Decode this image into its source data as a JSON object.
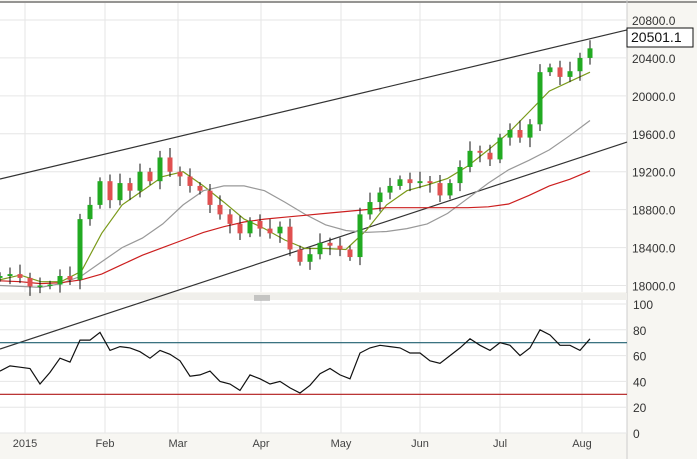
{
  "chart_data": [
    {
      "type": "candlestick",
      "price_axis": {
        "ticks": [
          "18000.0",
          "18400.0",
          "18800.0",
          "19200.0",
          "19600.0",
          "20000.0",
          "20400.0",
          "20800.0"
        ],
        "ylim": [
          17930,
          20960
        ]
      },
      "current_price": "20501.1",
      "closes": [
        18100,
        18120,
        18080,
        17990,
        18000,
        18010,
        18100,
        18060,
        18700,
        18850,
        19100,
        18900,
        19080,
        19000,
        19200,
        19100,
        19350,
        19200,
        19150,
        19050,
        19000,
        18850,
        18750,
        18650,
        18550,
        18680,
        18600,
        18550,
        18620,
        18380,
        18250,
        18330,
        18450,
        18420,
        18380,
        18300,
        18750,
        18880,
        18980,
        19050,
        19120,
        19080,
        19100,
        19080,
        18950,
        19080,
        19250,
        19420,
        19400,
        19330,
        19560,
        19640,
        19560,
        19700,
        20250,
        20300,
        20200,
        20260,
        20400,
        20501.1
      ],
      "moving_averages": [
        {
          "color": "#7a9a1a",
          "values": [
            18060,
            18110,
            18040,
            18040,
            18150,
            18550,
            18850,
            19000,
            19150,
            19200,
            19050,
            18880,
            18700,
            18600,
            18480,
            18390,
            18390,
            18380,
            18580,
            18850,
            19000,
            19060,
            19130,
            19260,
            19430,
            19610,
            19830,
            20050,
            20150,
            20250
          ]
        },
        {
          "color": "#999999",
          "values": [
            18000,
            17990,
            17980,
            18020,
            18100,
            18250,
            18400,
            18500,
            18650,
            18850,
            19000,
            19050,
            19050,
            19000,
            18880,
            18750,
            18640,
            18580,
            18560,
            18570,
            18600,
            18650,
            18760,
            18920,
            19080,
            19220,
            19320,
            19430,
            19580,
            19740
          ]
        },
        {
          "color": "#cc1f1f",
          "values": [
            18050,
            18040,
            18020,
            18030,
            18060,
            18120,
            18220,
            18320,
            18400,
            18480,
            18560,
            18620,
            18670,
            18700,
            18720,
            18740,
            18760,
            18780,
            18800,
            18820,
            18820,
            18820,
            18820,
            18820,
            18830,
            18860,
            18950,
            19050,
            19120,
            19210
          ]
        }
      ],
      "trendlines": [
        {
          "start": 19123,
          "end": 20695
        },
        {
          "start": 17330,
          "end": 19513
        }
      ],
      "bull_color": "#22aa22",
      "bear_color": "#e05050"
    },
    {
      "type": "line",
      "ylim": [
        0,
        100
      ],
      "ticks": [
        "0",
        "20",
        "40",
        "60",
        "80",
        "100"
      ],
      "levels": [
        {
          "value": 70,
          "color": "#1f5f6f"
        },
        {
          "value": 30,
          "color": "#b01818"
        }
      ],
      "values": [
        48,
        52,
        51,
        50,
        38,
        47,
        58,
        55,
        72,
        72,
        78,
        64,
        67,
        66,
        63,
        58,
        64,
        61,
        56,
        44,
        45,
        48,
        40,
        38,
        33,
        45,
        42,
        38,
        40,
        35,
        31,
        37,
        46,
        50,
        45,
        42,
        62,
        66,
        68,
        67,
        66,
        62,
        62,
        56,
        54,
        60,
        66,
        73,
        68,
        64,
        70,
        68,
        60,
        66,
        80,
        76,
        68,
        68,
        64,
        73
      ]
    }
  ],
  "x_axis": {
    "labels": [
      "2015",
      "Feb",
      "Mar",
      "Apr",
      "May",
      "Jun",
      "Jul",
      "Aug"
    ]
  }
}
